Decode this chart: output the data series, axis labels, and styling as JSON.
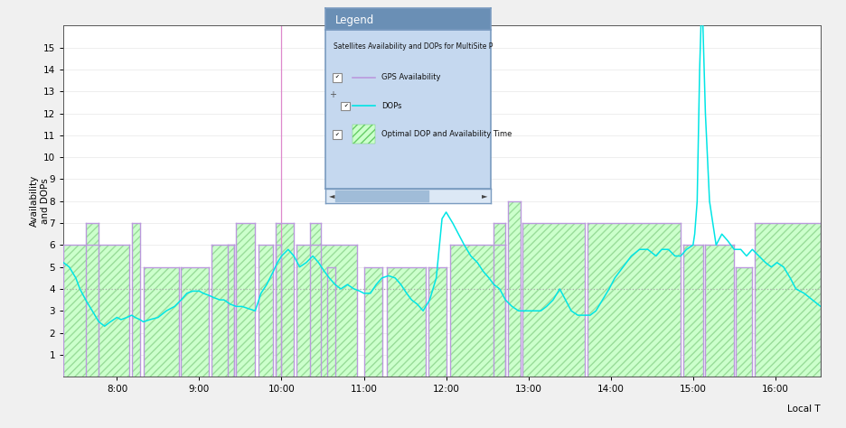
{
  "ylabel": "Availability\nand DOPs",
  "xlabel": "Local T",
  "ylim": [
    0,
    16
  ],
  "yticks": [
    1,
    2,
    3,
    4,
    5,
    6,
    7,
    8,
    9,
    10,
    11,
    12,
    13,
    14,
    15
  ],
  "background_color": "#f0f0f0",
  "plot_bg_color": "#ffffff",
  "dashed_line_y": 4,
  "vertical_line_x": 10.0,
  "vertical_line_color": "#dd88cc",
  "dashed_line_color": "#aaaaaa",
  "gps_color": "#bb99dd",
  "dop_color": "#00e5e5",
  "fill_color": "#ccffcc",
  "fill_edge_color": "#99dd99",
  "legend_title": "Legend",
  "legend_subtitle": "Satellites Availability and DOPs for MultiSite P",
  "legend_items": [
    "GPS Availability",
    "DOPs",
    "Optimal DOP and Availability Time"
  ],
  "xtick_positions": [
    8.0,
    9.0,
    10.0,
    11.0,
    12.0,
    13.0,
    14.0,
    15.0,
    16.0
  ],
  "xtick_labels": [
    "8:00",
    "9:00",
    "10:00",
    "11:00",
    "12:00",
    "13:00",
    "14:00",
    "15:00",
    "16:00"
  ],
  "xmin": 7.35,
  "xmax": 16.55,
  "gps_segments": [
    {
      "x": [
        7.35,
        8.15
      ],
      "y": 6
    },
    {
      "x": [
        7.62,
        7.78
      ],
      "y": 7
    },
    {
      "x": [
        8.18,
        8.28
      ],
      "y": 7
    },
    {
      "x": [
        8.32,
        8.75
      ],
      "y": 5
    },
    {
      "x": [
        8.78,
        9.12
      ],
      "y": 5
    },
    {
      "x": [
        9.15,
        9.42
      ],
      "y": 6
    },
    {
      "x": [
        9.45,
        9.68
      ],
      "y": 7
    },
    {
      "x": [
        9.72,
        9.9
      ],
      "y": 6
    },
    {
      "x": [
        9.93,
        10.15
      ],
      "y": 7
    },
    {
      "x": [
        9.35,
        9.42
      ],
      "y": 6
    },
    {
      "x": [
        9.93,
        10.0
      ],
      "y": 6
    },
    {
      "x": [
        10.18,
        10.92
      ],
      "y": 6
    },
    {
      "x": [
        10.35,
        10.48
      ],
      "y": 7
    },
    {
      "x": [
        10.55,
        10.65
      ],
      "y": 5
    },
    {
      "x": [
        11.0,
        11.22
      ],
      "y": 5
    },
    {
      "x": [
        11.28,
        11.75
      ],
      "y": 5
    },
    {
      "x": [
        11.78,
        12.0
      ],
      "y": 5
    },
    {
      "x": [
        12.05,
        12.72
      ],
      "y": 6
    },
    {
      "x": [
        12.58,
        12.72
      ],
      "y": 7
    },
    {
      "x": [
        12.75,
        12.9
      ],
      "y": 8
    },
    {
      "x": [
        12.93,
        13.68
      ],
      "y": 7
    },
    {
      "x": [
        13.72,
        14.85
      ],
      "y": 7
    },
    {
      "x": [
        14.88,
        15.12
      ],
      "y": 6
    },
    {
      "x": [
        15.15,
        15.5
      ],
      "y": 6
    },
    {
      "x": [
        15.52,
        15.72
      ],
      "y": 5
    },
    {
      "x": [
        15.75,
        16.55
      ],
      "y": 7
    }
  ],
  "dop_x": [
    7.35,
    7.42,
    7.5,
    7.55,
    7.62,
    7.7,
    7.78,
    7.85,
    7.92,
    8.0,
    8.05,
    8.12,
    8.18,
    8.22,
    8.28,
    8.32,
    8.4,
    8.5,
    8.6,
    8.7,
    8.78,
    8.85,
    8.92,
    9.0,
    9.05,
    9.12,
    9.18,
    9.25,
    9.3,
    9.38,
    9.45,
    9.52,
    9.6,
    9.68,
    9.75,
    9.82,
    9.9,
    9.95,
    10.0,
    10.08,
    10.15,
    10.22,
    10.3,
    10.38,
    10.45,
    10.52,
    10.58,
    10.65,
    10.72,
    10.8,
    10.88,
    10.95,
    11.0,
    11.08,
    11.15,
    11.22,
    11.3,
    11.38,
    11.45,
    11.52,
    11.58,
    11.65,
    11.72,
    11.8,
    11.88,
    11.95,
    12.0,
    12.08,
    12.15,
    12.22,
    12.3,
    12.38,
    12.45,
    12.52,
    12.58,
    12.65,
    12.72,
    12.8,
    12.88,
    12.95,
    13.0,
    13.08,
    13.15,
    13.22,
    13.3,
    13.38,
    13.45,
    13.52,
    13.6,
    13.68,
    13.75,
    13.82,
    13.9,
    13.98,
    14.05,
    14.15,
    14.25,
    14.35,
    14.45,
    14.55,
    14.62,
    14.7,
    14.78,
    14.85,
    14.92,
    15.0,
    15.02,
    15.05,
    15.08,
    15.1,
    15.12,
    15.15,
    15.2,
    15.28,
    15.35,
    15.42,
    15.5,
    15.58,
    15.65,
    15.72,
    15.8,
    15.88,
    15.95,
    16.02,
    16.1,
    16.18,
    16.25,
    16.35,
    16.45,
    16.55
  ],
  "dop_y": [
    5.2,
    5.0,
    4.5,
    4.0,
    3.5,
    3.0,
    2.5,
    2.3,
    2.5,
    2.7,
    2.6,
    2.7,
    2.8,
    2.7,
    2.6,
    2.5,
    2.6,
    2.7,
    3.0,
    3.2,
    3.5,
    3.8,
    3.9,
    3.9,
    3.8,
    3.7,
    3.6,
    3.5,
    3.5,
    3.3,
    3.2,
    3.2,
    3.1,
    3.0,
    3.8,
    4.2,
    4.8,
    5.2,
    5.5,
    5.8,
    5.5,
    5.0,
    5.2,
    5.5,
    5.2,
    4.8,
    4.5,
    4.2,
    4.0,
    4.2,
    4.0,
    3.9,
    3.8,
    3.8,
    4.2,
    4.5,
    4.6,
    4.5,
    4.2,
    3.8,
    3.5,
    3.3,
    3.0,
    3.5,
    4.5,
    7.2,
    7.5,
    7.0,
    6.5,
    6.0,
    5.5,
    5.2,
    4.8,
    4.5,
    4.2,
    4.0,
    3.5,
    3.2,
    3.0,
    3.0,
    3.0,
    3.0,
    3.0,
    3.2,
    3.5,
    4.0,
    3.5,
    3.0,
    2.8,
    2.8,
    2.8,
    3.0,
    3.5,
    4.0,
    4.5,
    5.0,
    5.5,
    5.8,
    5.8,
    5.5,
    5.8,
    5.8,
    5.5,
    5.5,
    5.8,
    6.0,
    6.5,
    8.0,
    14.0,
    16.5,
    16.0,
    12.0,
    8.0,
    6.0,
    6.5,
    6.2,
    5.8,
    5.8,
    5.5,
    5.8,
    5.5,
    5.2,
    5.0,
    5.2,
    5.0,
    4.5,
    4.0,
    3.8,
    3.5,
    3.2
  ]
}
